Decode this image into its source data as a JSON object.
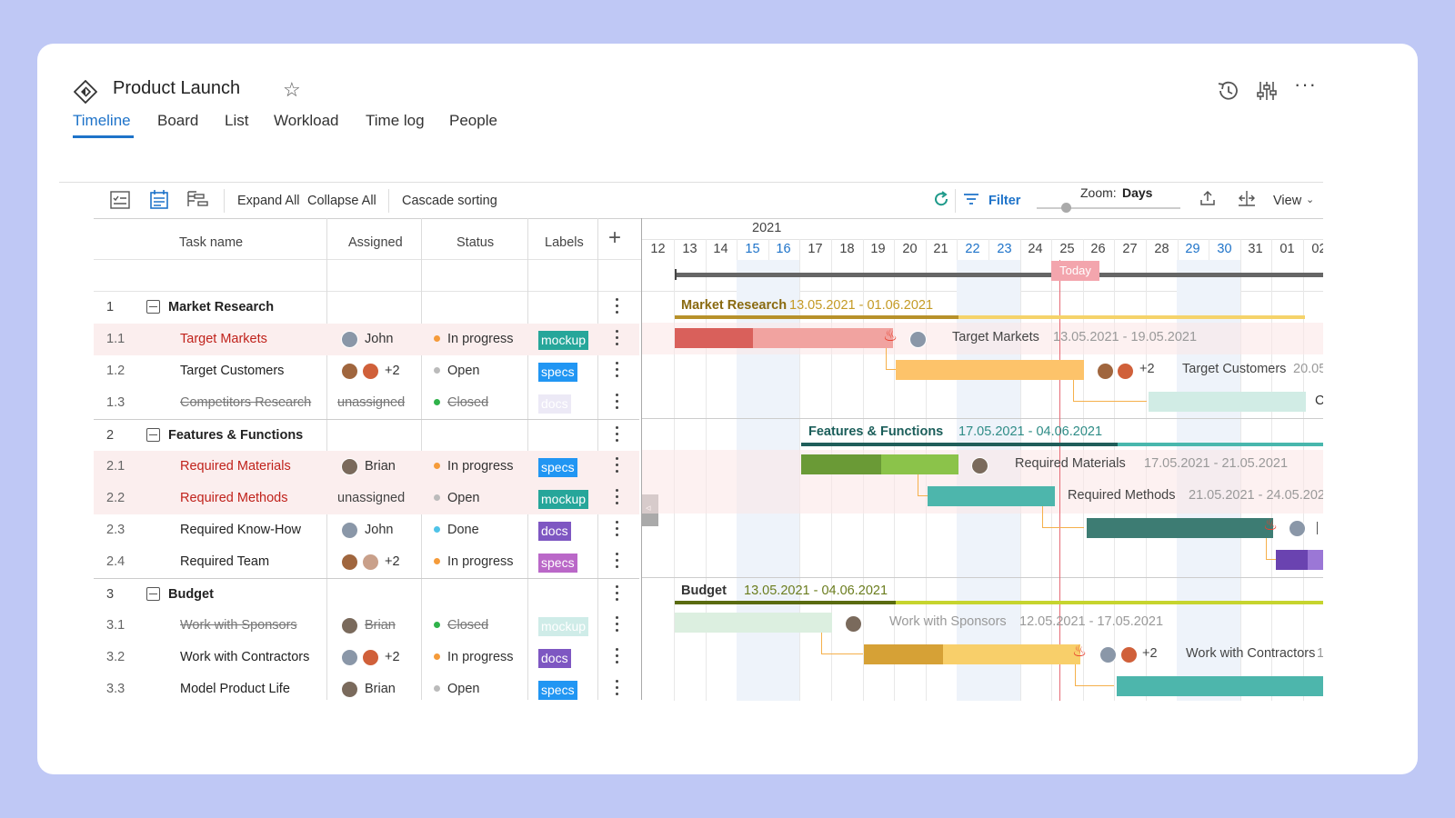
{
  "project": {
    "title": "Product Launch"
  },
  "tabs": [
    "Timeline",
    "Board",
    "List",
    "Workload",
    "Time log",
    "People"
  ],
  "toolbar": {
    "expand_all": "Expand All",
    "collapse_all": "Collapse All",
    "cascade": "Cascade sorting",
    "filter": "Filter",
    "zoom_label": "Zoom:",
    "zoom_value": "Days",
    "view": "View"
  },
  "columns": {
    "task": "Task name",
    "assigned": "Assigned",
    "status": "Status",
    "labels": "Labels"
  },
  "timeline": {
    "year": "2021",
    "days": [
      "12",
      "13",
      "14",
      "15",
      "16",
      "17",
      "18",
      "19",
      "20",
      "21",
      "22",
      "23",
      "24",
      "25",
      "26",
      "27",
      "28",
      "29",
      "30",
      "31",
      "01",
      "02"
    ],
    "weekend_days": [
      "15",
      "16",
      "22",
      "23",
      "29",
      "30"
    ],
    "today_label": "Today"
  },
  "rows": [
    {
      "num": "1",
      "name": "Market Research",
      "type": "group"
    },
    {
      "num": "1.1",
      "name": "Target Markets",
      "assigned": "John",
      "status": "In progress",
      "status_color": "#f59b3a",
      "label": "mockup",
      "label_color": "#26a69a",
      "highlight": true,
      "red": true
    },
    {
      "num": "1.2",
      "name": "Target Customers",
      "assigned": "+2",
      "status": "Open",
      "status_color": "#bbbbbb",
      "label": "specs",
      "label_color": "#2196f3"
    },
    {
      "num": "1.3",
      "name": "Competitors Research",
      "assigned": "unassigned",
      "status": "Closed",
      "status_color": "#2fb24a",
      "label": "docs",
      "label_color": "#e7e3f4",
      "strike": true
    },
    {
      "num": "2",
      "name": "Features & Functions",
      "type": "group"
    },
    {
      "num": "2.1",
      "name": "Required Materials",
      "assigned": "Brian",
      "status": "In progress",
      "status_color": "#f59b3a",
      "label": "specs",
      "label_color": "#2196f3",
      "highlight": true,
      "red": true
    },
    {
      "num": "2.2",
      "name": "Required Methods",
      "assigned": "unassigned",
      "status": "Open",
      "status_color": "#bbbbbb",
      "label": "mockup",
      "label_color": "#26a69a",
      "highlight": true,
      "red": true
    },
    {
      "num": "2.3",
      "name": "Required Know-How",
      "assigned": "John",
      "status": "Done",
      "status_color": "#4fc3e8",
      "label": "docs",
      "label_color": "#7e57c2"
    },
    {
      "num": "2.4",
      "name": "Required Team",
      "assigned": "+2",
      "status": "In progress",
      "status_color": "#f59b3a",
      "label": "specs",
      "label_color": "#ba68c8"
    },
    {
      "num": "3",
      "name": "Budget",
      "type": "group"
    },
    {
      "num": "3.1",
      "name": "Work with Sponsors",
      "assigned": "Brian",
      "status": "Closed",
      "status_color": "#2fb24a",
      "label": "mockup",
      "label_color": "#cfece8",
      "strike": true
    },
    {
      "num": "3.2",
      "name": "Work with Contractors",
      "assigned": "+2",
      "status": "In progress",
      "status_color": "#f59b3a",
      "label": "docs",
      "label_color": "#7e57c2"
    },
    {
      "num": "3.3",
      "name": "Model Product Life",
      "assigned": "Brian",
      "status": "Open",
      "status_color": "#bbbbbb",
      "label": "specs",
      "label_color": "#2196f3"
    }
  ],
  "gantt": {
    "market_research": {
      "name": "Market Research",
      "dates": "13.05.2021 - 01.06.2021"
    },
    "target_markets": {
      "name": "Target Markets",
      "dates": "13.05.2021 - 19.05.2021"
    },
    "target_customers": {
      "name": "Target Customers",
      "dates": "20.05",
      "extra": "+2"
    },
    "competitors_research": {
      "name": "Cor"
    },
    "features_functions": {
      "name": "Features & Functions",
      "dates": "17.05.2021 - 04.06.2021"
    },
    "required_materials": {
      "name": "Required Materials",
      "dates": "17.05.2021 - 21.05.2021"
    },
    "required_methods": {
      "name": "Required Methods",
      "dates": "21.05.2021 - 24.05.2021"
    },
    "budget": {
      "name": "Budget",
      "dates": "13.05.2021 - 04.06.2021"
    },
    "work_with_sponsors": {
      "name": "Work with Sponsors",
      "dates": "12.05.2021 - 17.05.2021"
    },
    "work_with_contractors": {
      "name": "Work with Contractors",
      "dates": "1",
      "extra": "+2"
    }
  }
}
